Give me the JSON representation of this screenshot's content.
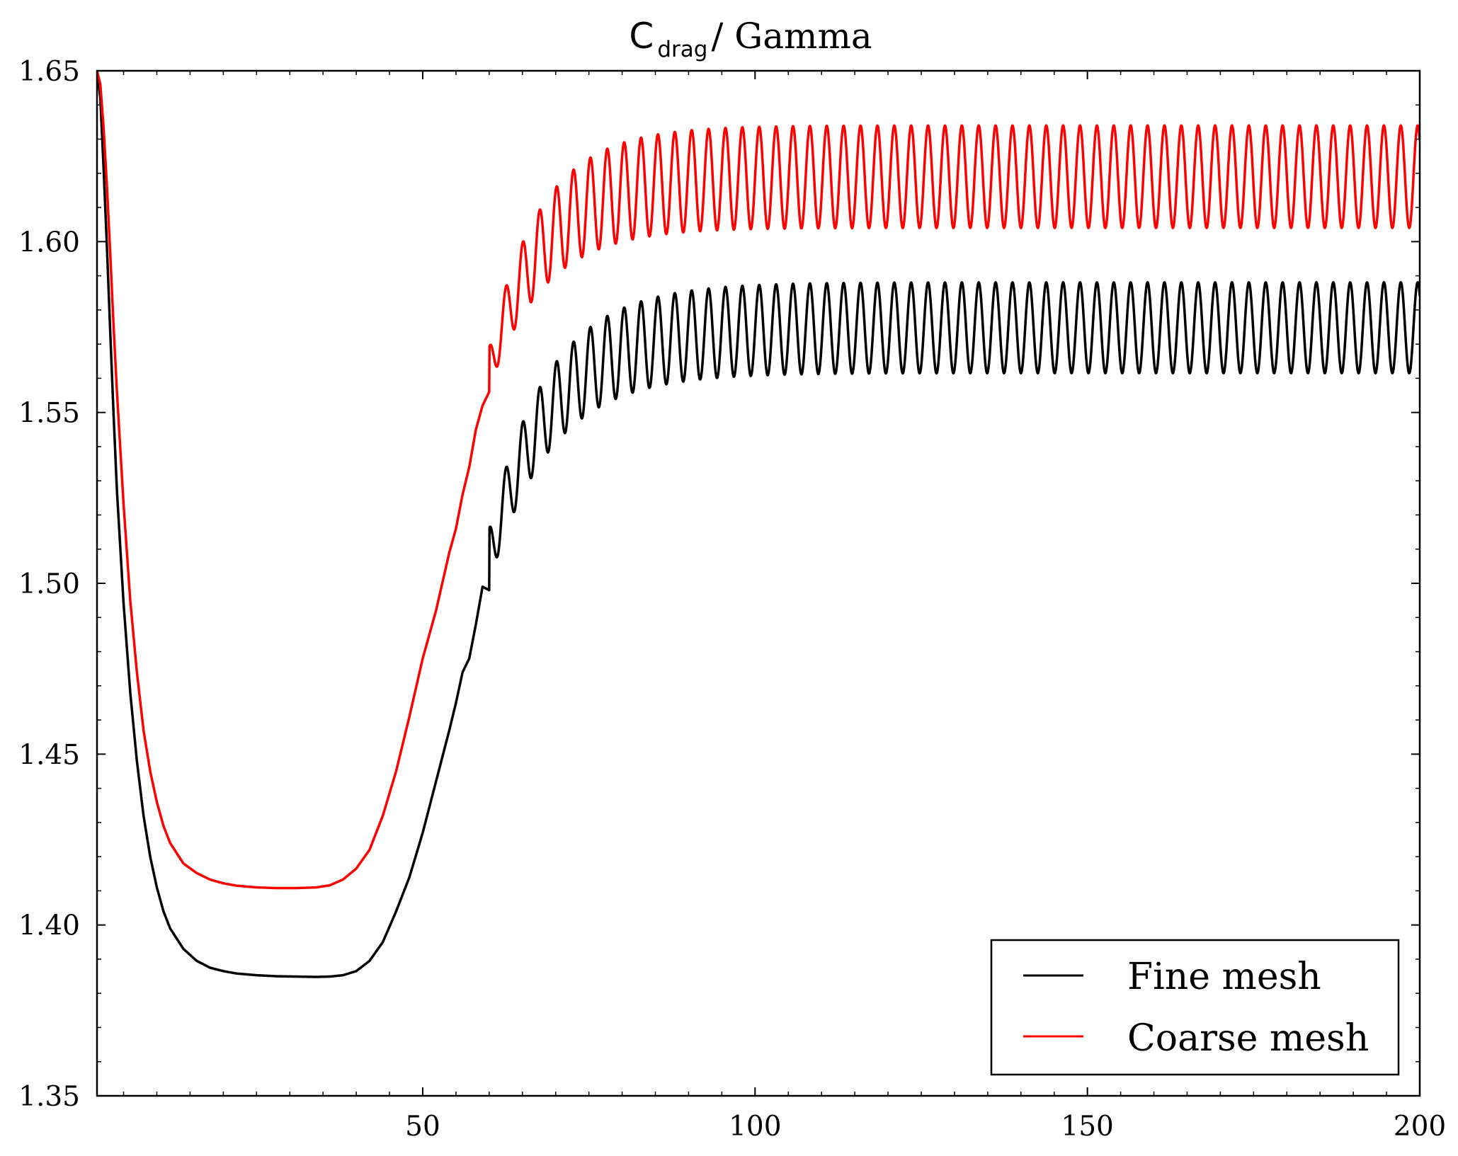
{
  "chart_data": {
    "type": "line",
    "title": {
      "main": "C",
      "subscript": "drag",
      "separator": " / ",
      "suffix": "Gamma"
    },
    "xlabel": "",
    "ylabel": "",
    "xlim": [
      1,
      200
    ],
    "ylim": [
      1.35,
      1.65
    ],
    "xticks": [
      {
        "value": 50,
        "label": "50"
      },
      {
        "value": 100,
        "label": "100"
      },
      {
        "value": 150,
        "label": "150"
      },
      {
        "value": 200,
        "label": "200"
      }
    ],
    "yticks": [
      {
        "value": 1.35,
        "label": "1.35"
      },
      {
        "value": 1.4,
        "label": "1.40"
      },
      {
        "value": 1.45,
        "label": "1.45"
      },
      {
        "value": 1.5,
        "label": "1.50"
      },
      {
        "value": 1.55,
        "label": "1.55"
      },
      {
        "value": 1.6,
        "label": "1.60"
      },
      {
        "value": 1.65,
        "label": "1.65"
      }
    ],
    "x_minor_step": 5,
    "y_minor_step": 0.01,
    "grid": false,
    "legend_position": "bottom-right",
    "series": [
      {
        "name": "Fine mesh",
        "color": "#000000",
        "points": [
          [
            1.0,
            1.65
          ],
          [
            1.5,
            1.642
          ],
          [
            2.0,
            1.621
          ],
          [
            2.5,
            1.598
          ],
          [
            3.0,
            1.573
          ],
          [
            3.5,
            1.549
          ],
          [
            4.0,
            1.527
          ],
          [
            5.0,
            1.494
          ],
          [
            6.0,
            1.468
          ],
          [
            7.0,
            1.448
          ],
          [
            8.0,
            1.432
          ],
          [
            9.0,
            1.42
          ],
          [
            10.0,
            1.411
          ],
          [
            11.0,
            1.404
          ],
          [
            12.0,
            1.399
          ],
          [
            14.0,
            1.393
          ],
          [
            16.0,
            1.3895
          ],
          [
            18.0,
            1.3875
          ],
          [
            20.0,
            1.3865
          ],
          [
            22.0,
            1.3858
          ],
          [
            25.0,
            1.3853
          ],
          [
            28.0,
            1.385
          ],
          [
            31.0,
            1.3849
          ],
          [
            34.0,
            1.3848
          ],
          [
            36.0,
            1.3849
          ],
          [
            38.0,
            1.3853
          ],
          [
            40.0,
            1.3865
          ],
          [
            42.0,
            1.3895
          ],
          [
            44.0,
            1.395
          ],
          [
            46.0,
            1.404
          ],
          [
            48.0,
            1.414
          ],
          [
            50.0,
            1.427
          ],
          [
            52.0,
            1.442
          ],
          [
            54.0,
            1.457
          ],
          [
            55.0,
            1.465
          ],
          [
            56.0,
            1.474
          ],
          [
            57.0,
            1.478
          ],
          [
            58.0,
            1.488
          ],
          [
            59.0,
            1.499
          ],
          [
            60.0,
            1.498
          ]
        ],
        "oscillation": {
          "start": 60.0,
          "end": 200.0,
          "period": 2.54,
          "start_mean": 1.508,
          "mean": 1.5748,
          "start_amplitude": 0.008,
          "amplitude": 0.0133,
          "settle_time": 9.0,
          "amp_settle_time": 8.0,
          "phase": 1.6
        }
      },
      {
        "name": "Coarse mesh",
        "color": "#ff0000",
        "points": [
          [
            1.0,
            1.65
          ],
          [
            1.5,
            1.646
          ],
          [
            2.0,
            1.633
          ],
          [
            2.5,
            1.616
          ],
          [
            3.0,
            1.596
          ],
          [
            3.5,
            1.575
          ],
          [
            4.0,
            1.556
          ],
          [
            5.0,
            1.523
          ],
          [
            6.0,
            1.495
          ],
          [
            7.0,
            1.474
          ],
          [
            8.0,
            1.457
          ],
          [
            9.0,
            1.445
          ],
          [
            10.0,
            1.436
          ],
          [
            11.0,
            1.429
          ],
          [
            12.0,
            1.424
          ],
          [
            14.0,
            1.418
          ],
          [
            16.0,
            1.4152
          ],
          [
            18.0,
            1.4133
          ],
          [
            20.0,
            1.4122
          ],
          [
            22.0,
            1.4115
          ],
          [
            25.0,
            1.411
          ],
          [
            28.0,
            1.4108
          ],
          [
            31.0,
            1.4108
          ],
          [
            34.0,
            1.411
          ],
          [
            36.0,
            1.4116
          ],
          [
            38.0,
            1.4133
          ],
          [
            40.0,
            1.4165
          ],
          [
            42.0,
            1.422
          ],
          [
            44.0,
            1.432
          ],
          [
            46.0,
            1.445
          ],
          [
            48.0,
            1.461
          ],
          [
            50.0,
            1.478
          ],
          [
            52.0,
            1.492
          ],
          [
            54.0,
            1.509
          ],
          [
            55.0,
            1.516
          ],
          [
            56.0,
            1.526
          ],
          [
            57.0,
            1.534
          ],
          [
            58.0,
            1.545
          ],
          [
            59.0,
            1.552
          ],
          [
            60.0,
            1.556
          ]
        ],
        "oscillation": {
          "start": 60.0,
          "end": 200.0,
          "period": 2.54,
          "start_mean": 1.563,
          "mean": 1.619,
          "start_amplitude": 0.006,
          "amplitude": 0.015,
          "settle_time": 8.0,
          "amp_settle_time": 7.0,
          "phase": 1.6
        }
      }
    ]
  }
}
